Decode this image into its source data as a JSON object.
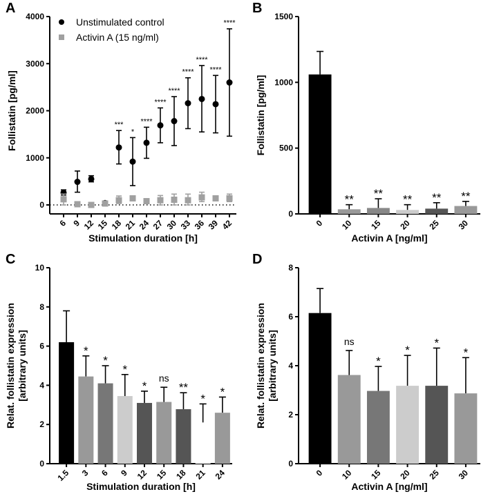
{
  "chart_data": [
    {
      "panel": "A",
      "type": "scatter",
      "xlabel": "Stimulation duration [h]",
      "ylabel": "Follistatin [pg/ml]",
      "ylim": [
        0,
        4000
      ],
      "yticks": [
        0,
        1000,
        2000,
        3000,
        4000
      ],
      "categories": [
        "6",
        "9",
        "12",
        "15",
        "18",
        "21",
        "24",
        "27",
        "30",
        "33",
        "36",
        "39",
        "42"
      ],
      "legend_position": "top-left",
      "series": [
        {
          "name": "Unstimulated control",
          "color": "#000000",
          "marker": "circle",
          "values": [
            260,
            490,
            550,
            40,
            1220,
            920,
            1320,
            1690,
            1780,
            2160,
            2250,
            2140,
            2600
          ],
          "err_low": [
            210,
            270,
            490,
            0,
            870,
            410,
            990,
            1320,
            1260,
            1620,
            1550,
            1530,
            1460
          ],
          "err_high": [
            320,
            720,
            620,
            80,
            1580,
            1430,
            1650,
            2060,
            2300,
            2700,
            2960,
            2750,
            3740
          ]
        },
        {
          "name": "Activin A (15 ng/ml)",
          "color": "#a0a0a0",
          "marker": "square",
          "values": [
            120,
            15,
            0,
            30,
            100,
            140,
            80,
            100,
            110,
            100,
            160,
            140,
            140
          ],
          "err_low": [
            0,
            0,
            0,
            0,
            30,
            100,
            50,
            0,
            0,
            0,
            70,
            120,
            70
          ],
          "err_high": [
            230,
            30,
            10,
            60,
            190,
            190,
            110,
            200,
            230,
            230,
            270,
            160,
            230
          ]
        }
      ],
      "annotations": [
        "",
        "",
        "",
        "",
        "***",
        "*",
        "****",
        "****",
        "****",
        "****",
        "****",
        "****",
        "****"
      ]
    },
    {
      "panel": "B",
      "type": "bar",
      "xlabel": "Activin A [ng/ml]",
      "ylabel": "Follistatin [pg/ml]",
      "ylim": [
        0,
        1500
      ],
      "yticks": [
        0,
        500,
        1000,
        1500
      ],
      "categories": [
        "0",
        "10",
        "15",
        "20",
        "25",
        "30"
      ],
      "values": [
        1060,
        35,
        45,
        30,
        40,
        60
      ],
      "err_high": [
        1235,
        70,
        115,
        70,
        85,
        95
      ],
      "colors": [
        "#000000",
        "#999999",
        "#888888",
        "#cccccc",
        "#555555",
        "#999999"
      ],
      "annotations": [
        "",
        "**",
        "**",
        "**",
        "**",
        "**"
      ]
    },
    {
      "panel": "C",
      "type": "bar",
      "xlabel": "Stimulation duration [h]",
      "ylabel": "Relat. follistatin expression",
      "ylabel2": "[arbitrary units]",
      "ylim": [
        0,
        10
      ],
      "yticks": [
        0,
        2,
        4,
        6,
        8,
        10
      ],
      "categories": [
        "1.5",
        "3",
        "6",
        "9",
        "12",
        "15",
        "18",
        "21",
        "24"
      ],
      "values": [
        6.2,
        4.45,
        4.1,
        3.45,
        3.1,
        3.15,
        2.78,
        2.1,
        2.6
      ],
      "err_high": [
        7.8,
        5.5,
        5.0,
        4.55,
        3.7,
        3.9,
        3.62,
        3.05,
        3.4
      ],
      "colors": [
        "#000000",
        "#999999",
        "#777777",
        "#cccccc",
        "#555555",
        "#999999",
        "#555555",
        "#ffffff",
        "#999999"
      ],
      "annotations": [
        "",
        "*",
        "*",
        "*",
        "*",
        "ns",
        "**",
        "*",
        "*"
      ]
    },
    {
      "panel": "D",
      "type": "bar",
      "xlabel": "Activin A [ng/ml]",
      "ylabel": "Relat. follistatin expression",
      "ylabel2": "[arbitrary units]",
      "ylim": [
        0,
        8
      ],
      "yticks": [
        0,
        2,
        4,
        6,
        8
      ],
      "categories": [
        "0",
        "10",
        "15",
        "20",
        "25",
        "30"
      ],
      "values": [
        6.15,
        3.62,
        2.97,
        3.18,
        3.18,
        2.87
      ],
      "err_high": [
        7.15,
        4.62,
        3.97,
        4.42,
        4.72,
        4.33
      ],
      "colors": [
        "#000000",
        "#999999",
        "#777777",
        "#cccccc",
        "#555555",
        "#999999"
      ],
      "annotations": [
        "",
        "ns",
        "*",
        "*",
        "*",
        "*"
      ]
    }
  ]
}
